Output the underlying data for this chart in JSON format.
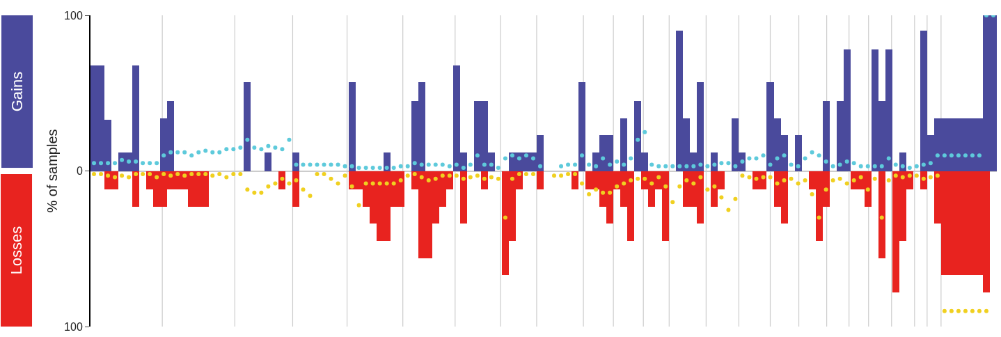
{
  "chart_data": {
    "type": "bar",
    "ylabel": "% of samples",
    "annotations": [
      "Gains",
      "Losses"
    ],
    "categories": [
      null,
      null,
      null,
      null,
      null,
      null,
      null,
      null,
      null,
      null,
      null,
      null,
      null,
      null,
      null,
      null,
      null,
      null,
      null,
      null,
      null,
      null,
      null,
      null,
      null,
      null,
      null,
      null,
      null,
      null,
      null,
      null,
      null,
      null,
      null,
      null,
      null,
      null,
      null,
      null,
      null,
      null,
      null,
      null,
      null,
      null,
      null,
      null,
      null,
      null,
      null,
      null,
      null,
      null,
      null,
      null,
      null,
      null,
      null,
      null,
      null,
      null,
      null,
      null,
      null,
      null,
      null,
      null,
      null,
      null,
      null,
      null,
      null,
      null,
      null,
      null,
      null,
      null,
      null,
      null,
      null,
      null,
      null,
      null,
      null,
      null,
      null,
      null,
      null,
      null,
      null,
      null,
      null,
      null,
      null,
      null,
      null,
      null,
      null,
      null,
      null,
      null,
      null,
      null,
      null,
      null,
      null,
      null,
      null,
      null,
      null,
      null,
      null,
      null,
      null,
      null,
      null,
      null,
      null,
      null,
      null,
      null,
      null,
      null,
      null,
      null,
      null,
      null,
      null,
      null
    ],
    "stacked": true,
    "series": [
      {
        "color": "#4a4a9c",
        "values": [
          68,
          68,
          33,
          0,
          12,
          12,
          68,
          0,
          0,
          0,
          34,
          45,
          0,
          0,
          0,
          0,
          0,
          0,
          0,
          0,
          0,
          0,
          57,
          0,
          0,
          12,
          0,
          0,
          0,
          12,
          0,
          0,
          0,
          0,
          0,
          0,
          0,
          57,
          0,
          0,
          0,
          0,
          12,
          0,
          0,
          0,
          45,
          57,
          0,
          0,
          0,
          0,
          68,
          12,
          0,
          45,
          45,
          12,
          0,
          0,
          12,
          12,
          12,
          12,
          23,
          0,
          0,
          0,
          0,
          0,
          57,
          0,
          12,
          23,
          23,
          0,
          34,
          0,
          45,
          12,
          0,
          0,
          0,
          0,
          90,
          34,
          12,
          57,
          0,
          12,
          0,
          0,
          34,
          12,
          0,
          0,
          0,
          57,
          34,
          23,
          0,
          23,
          0,
          0,
          0,
          45,
          0,
          45,
          78,
          0,
          0,
          0,
          78,
          45,
          78,
          0,
          12,
          0,
          0,
          90,
          23,
          34,
          34,
          34,
          34,
          34,
          34,
          34,
          100,
          100
        ]
      },
      {
        "color": "#e8231f",
        "values": [
          0,
          0,
          -12,
          -12,
          0,
          0,
          -23,
          0,
          -12,
          -23,
          -23,
          -12,
          -12,
          -12,
          -23,
          -23,
          -23,
          0,
          0,
          0,
          0,
          0,
          0,
          0,
          0,
          0,
          0,
          -12,
          0,
          -23,
          0,
          0,
          0,
          0,
          0,
          0,
          0,
          -12,
          -12,
          -23,
          -34,
          -45,
          -45,
          -23,
          -23,
          0,
          -12,
          -56,
          -56,
          -34,
          -23,
          -12,
          0,
          -34,
          0,
          0,
          -12,
          0,
          0,
          -67,
          -45,
          -12,
          0,
          0,
          -12,
          0,
          0,
          0,
          0,
          -12,
          0,
          -12,
          -12,
          -23,
          -34,
          -12,
          -23,
          -45,
          0,
          -12,
          -23,
          -12,
          -45,
          0,
          0,
          -23,
          -23,
          -34,
          0,
          -23,
          -12,
          0,
          0,
          0,
          0,
          -12,
          -12,
          0,
          -23,
          -34,
          0,
          0,
          0,
          -12,
          -45,
          -23,
          0,
          0,
          0,
          -12,
          -12,
          -23,
          0,
          -56,
          0,
          -78,
          -45,
          -12,
          0,
          -12,
          0,
          -34,
          -67,
          -67,
          -67,
          -67,
          -67,
          -67,
          -78,
          0
        ]
      },
      {
        "type": "scatter",
        "color": "#5ecadb",
        "values": [
          5,
          5,
          5,
          5,
          7,
          6,
          6,
          5,
          5,
          5,
          10,
          12,
          12,
          12,
          10,
          12,
          13,
          12,
          12,
          14,
          14,
          15,
          20,
          15,
          14,
          16,
          15,
          14,
          20,
          4,
          4,
          4,
          4,
          4,
          4,
          4,
          3,
          3,
          2,
          2,
          2,
          2,
          2,
          2,
          3,
          3,
          5,
          4,
          4,
          4,
          4,
          3,
          4,
          2,
          4,
          10,
          4,
          4,
          2,
          8,
          10,
          8,
          10,
          8,
          3,
          null,
          null,
          3,
          4,
          4,
          10,
          4,
          3,
          8,
          4,
          6,
          4,
          8,
          20,
          25,
          4,
          3,
          3,
          3,
          3,
          3,
          3,
          4,
          3,
          4,
          5,
          5,
          3,
          6,
          8,
          8,
          10,
          4,
          8,
          10,
          4,
          3,
          8,
          12,
          10,
          6,
          3,
          4,
          6,
          5,
          3,
          3,
          3,
          3,
          8,
          4,
          3,
          2,
          3,
          4,
          5,
          10,
          10,
          10,
          10,
          10,
          10,
          10,
          100,
          100
        ]
      },
      {
        "type": "scatter",
        "color": "#f0d020",
        "values": [
          -2,
          -2,
          -3,
          -4,
          -3,
          -4,
          -2,
          -2,
          -2,
          -4,
          -2,
          -3,
          -2,
          -3,
          -2,
          -2,
          -2,
          -3,
          -2,
          -4,
          -2,
          -2,
          -12,
          -14,
          -14,
          -10,
          -8,
          -5,
          -8,
          -6,
          -12,
          -16,
          -2,
          -2,
          -5,
          -8,
          -3,
          -10,
          -22,
          -8,
          -8,
          -8,
          -8,
          -8,
          -6,
          -3,
          -2,
          -4,
          -6,
          -5,
          -3,
          -3,
          -3,
          -5,
          -4,
          -3,
          -5,
          -4,
          -5,
          -30,
          -5,
          -2,
          -2,
          -2,
          null,
          null,
          -3,
          -3,
          -2,
          -2,
          -8,
          -15,
          -12,
          -14,
          -14,
          -10,
          -8,
          -6,
          -5,
          -5,
          -8,
          -4,
          -10,
          -20,
          -10,
          -6,
          -8,
          -4,
          -12,
          -10,
          -17,
          -25,
          -18,
          -3,
          -4,
          -5,
          -4,
          -4,
          -8,
          -6,
          -5,
          -8,
          -6,
          -15,
          -30,
          -12,
          -6,
          -5,
          -8,
          -6,
          -4,
          -12,
          -5,
          -30,
          -6,
          -3,
          -4,
          -3,
          -3,
          -5,
          -4,
          -3,
          -90,
          -90,
          -90,
          -90,
          -90,
          -90,
          -90,
          null
        ]
      }
    ],
    "ylim": [
      -100,
      100
    ],
    "yticks": [
      100,
      0,
      {
        "value": -100,
        "label": "100"
      }
    ],
    "tick_labels": "y",
    "marker": "circle"
  }
}
